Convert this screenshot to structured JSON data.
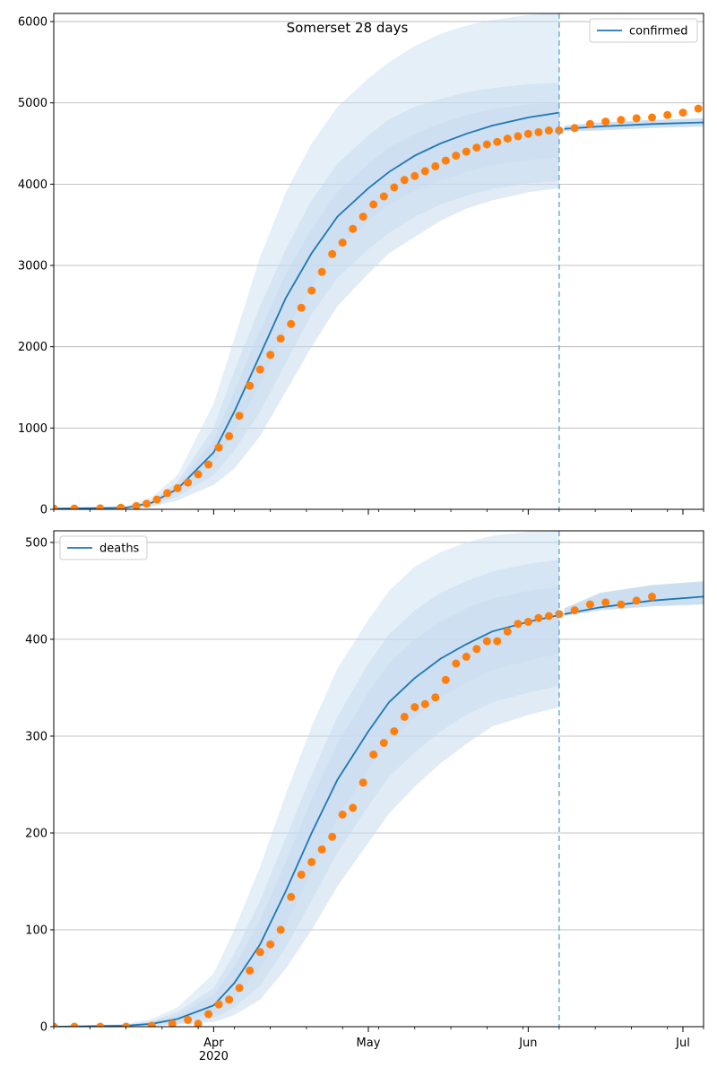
{
  "colors": {
    "line": "#1f77b4",
    "points": "#ff7f0e",
    "band": "#c6dbef",
    "grid": "#b0b0b0",
    "forecast_line": "#6baed6"
  },
  "x_ticks": {
    "major": [
      {
        "date": "2020-04-01",
        "label": "Apr",
        "sub": "2020"
      },
      {
        "date": "2020-05-01",
        "label": "May",
        "sub": ""
      },
      {
        "date": "2020-06-01",
        "label": "Jun",
        "sub": ""
      },
      {
        "date": "2020-07-01",
        "label": "Jul",
        "sub": ""
      }
    ]
  },
  "chart_data": [
    {
      "type": "line",
      "title": "Somerset 28 days",
      "xlabel": "",
      "ylabel": "",
      "xlim": [
        "2020-03-01",
        "2020-07-05"
      ],
      "ylim": [
        0,
        6100
      ],
      "yticks": [
        0,
        1000,
        2000,
        3000,
        4000,
        5000,
        6000
      ],
      "ytick_labels": [
        "0",
        "1000",
        "2000",
        "3000",
        "4000",
        "5000",
        "6000"
      ],
      "grid": true,
      "legend": {
        "position": "top-right",
        "entries": [
          "confirmed"
        ]
      },
      "forecast_start": "2020-06-07",
      "series": [
        {
          "name": "confirmed",
          "kind": "line",
          "x": [
            "2020-03-01",
            "2020-03-15",
            "2020-03-20",
            "2020-03-25",
            "2020-04-01",
            "2020-04-05",
            "2020-04-10",
            "2020-04-15",
            "2020-04-20",
            "2020-04-25",
            "2020-05-01",
            "2020-05-05",
            "2020-05-10",
            "2020-05-15",
            "2020-05-20",
            "2020-05-25",
            "2020-06-01",
            "2020-06-07",
            "2020-06-08",
            "2020-06-15",
            "2020-06-25",
            "2020-07-05"
          ],
          "y": [
            10,
            20,
            80,
            250,
            700,
            1200,
            1900,
            2600,
            3150,
            3600,
            3950,
            4150,
            4350,
            4500,
            4620,
            4720,
            4820,
            4880,
            4680,
            4710,
            4740,
            4760
          ],
          "band_upper": [
            [
              12,
              40,
              150,
              420,
              1300,
              2100,
              3100,
              3900,
              4500,
              4950,
              5300,
              5500,
              5700,
              5850,
              5950,
              6020,
              6080,
              6110
            ],
            [
              11,
              30,
              110,
              340,
              1000,
              1700,
              2500,
              3200,
              3800,
              4250,
              4600,
              4800,
              4950,
              5050,
              5130,
              5180,
              5230,
              5250
            ],
            [
              11,
              25,
              95,
              300,
              850,
              1450,
              2200,
              2900,
              3450,
              3900,
              4250,
              4450,
              4620,
              4750,
              4850,
              4920,
              4980,
              5000
            ]
          ],
          "band_lower": [
            [
              9,
              15,
              60,
              200,
              560,
              960,
              1550,
              2200,
              2750,
              3200,
              3550,
              3750,
              3920,
              4050,
              4150,
              4230,
              4300,
              4330
            ],
            [
              8,
              10,
              45,
              160,
              420,
              720,
              1200,
              1800,
              2400,
              2850,
              3200,
              3400,
              3600,
              3750,
              3860,
              3940,
              4010,
              4040
            ],
            [
              7,
              6,
              30,
              110,
              300,
              500,
              900,
              1450,
              2000,
              2500,
              2900,
              3150,
              3350,
              3550,
              3700,
              3800,
              3900,
              3950
            ]
          ],
          "band_tail_upper": [
            4720,
            4760,
            4790,
            4810
          ],
          "band_tail_lower": [
            4650,
            4660,
            4690,
            4710
          ]
        },
        {
          "name": "confirmed_observed",
          "kind": "points",
          "x": [
            "2020-03-01",
            "2020-03-05",
            "2020-03-10",
            "2020-03-14",
            "2020-03-17",
            "2020-03-19",
            "2020-03-21",
            "2020-03-23",
            "2020-03-25",
            "2020-03-27",
            "2020-03-29",
            "2020-03-31",
            "2020-04-02",
            "2020-04-04",
            "2020-04-06",
            "2020-04-08",
            "2020-04-10",
            "2020-04-12",
            "2020-04-14",
            "2020-04-16",
            "2020-04-18",
            "2020-04-20",
            "2020-04-22",
            "2020-04-24",
            "2020-04-26",
            "2020-04-28",
            "2020-04-30",
            "2020-05-02",
            "2020-05-04",
            "2020-05-06",
            "2020-05-08",
            "2020-05-10",
            "2020-05-12",
            "2020-05-14",
            "2020-05-16",
            "2020-05-18",
            "2020-05-20",
            "2020-05-22",
            "2020-05-24",
            "2020-05-26",
            "2020-05-28",
            "2020-05-30",
            "2020-06-01",
            "2020-06-03",
            "2020-06-05",
            "2020-06-07",
            "2020-06-10",
            "2020-06-13",
            "2020-06-16",
            "2020-06-19",
            "2020-06-22",
            "2020-06-25",
            "2020-06-28",
            "2020-07-01",
            "2020-07-04"
          ],
          "y": [
            10,
            10,
            12,
            20,
            40,
            70,
            120,
            200,
            260,
            330,
            430,
            550,
            760,
            900,
            1150,
            1520,
            1720,
            1900,
            2100,
            2280,
            2480,
            2690,
            2920,
            3140,
            3280,
            3450,
            3600,
            3750,
            3850,
            3960,
            4050,
            4100,
            4160,
            4220,
            4290,
            4350,
            4400,
            4450,
            4490,
            4520,
            4560,
            4590,
            4620,
            4640,
            4660,
            4660,
            4690,
            4740,
            4770,
            4790,
            4810,
            4820,
            4850,
            4880,
            4930
          ]
        }
      ]
    },
    {
      "type": "line",
      "title": "",
      "xlabel": "",
      "ylabel": "",
      "xlim": [
        "2020-03-01",
        "2020-07-05"
      ],
      "ylim": [
        0,
        512
      ],
      "yticks": [
        0,
        100,
        200,
        300,
        400,
        500
      ],
      "ytick_labels": [
        "0",
        "100",
        "200",
        "300",
        "400",
        "500"
      ],
      "grid": true,
      "legend": {
        "position": "top-left",
        "entries": [
          "deaths"
        ]
      },
      "forecast_start": "2020-06-07",
      "series": [
        {
          "name": "deaths",
          "kind": "line",
          "x": [
            "2020-03-01",
            "2020-03-15",
            "2020-03-20",
            "2020-03-25",
            "2020-04-01",
            "2020-04-05",
            "2020-04-10",
            "2020-04-15",
            "2020-04-20",
            "2020-04-25",
            "2020-05-01",
            "2020-05-05",
            "2020-05-10",
            "2020-05-15",
            "2020-05-20",
            "2020-05-25",
            "2020-06-01",
            "2020-06-07",
            "2020-06-08",
            "2020-06-15",
            "2020-06-25",
            "2020-07-05"
          ],
          "y": [
            0,
            1,
            3,
            8,
            22,
            45,
            85,
            140,
            200,
            255,
            305,
            335,
            360,
            380,
            395,
            408,
            418,
            425,
            426,
            433,
            440,
            444
          ],
          "band_upper": [
            [
              0,
              3,
              8,
              20,
              55,
              100,
              165,
              240,
              310,
              370,
              420,
              450,
              475,
              490,
              500,
              507,
              511,
              512
            ],
            [
              0,
              2,
              6,
              15,
              40,
              75,
              130,
              195,
              260,
              320,
              375,
              405,
              430,
              448,
              460,
              470,
              478,
              482
            ],
            [
              0,
              2,
              5,
              12,
              33,
              62,
              110,
              170,
              235,
              292,
              345,
              375,
              400,
              418,
              432,
              442,
              450,
              454
            ]
          ],
          "band_lower": [
            [
              0,
              1,
              2,
              5,
              14,
              30,
              60,
              105,
              160,
              215,
              265,
              295,
              320,
              340,
              355,
              368,
              378,
              385
            ],
            [
              0,
              0,
              1,
              3,
              9,
              20,
              42,
              82,
              130,
              180,
              228,
              258,
              283,
              305,
              322,
              335,
              345,
              352
            ],
            [
              0,
              0,
              1,
              2,
              5,
              12,
              28,
              60,
              100,
              145,
              190,
              220,
              248,
              272,
              292,
              310,
              322,
              330
            ]
          ],
          "band_tail_upper": [
            432,
            448,
            456,
            460
          ],
          "band_tail_lower": [
            424,
            430,
            434,
            436
          ]
        },
        {
          "name": "deaths_observed",
          "kind": "points",
          "x": [
            "2020-03-01",
            "2020-03-05",
            "2020-03-10",
            "2020-03-15",
            "2020-03-20",
            "2020-03-24",
            "2020-03-27",
            "2020-03-29",
            "2020-03-31",
            "2020-04-02",
            "2020-04-04",
            "2020-04-06",
            "2020-04-08",
            "2020-04-10",
            "2020-04-12",
            "2020-04-14",
            "2020-04-16",
            "2020-04-18",
            "2020-04-20",
            "2020-04-22",
            "2020-04-24",
            "2020-04-26",
            "2020-04-28",
            "2020-04-30",
            "2020-05-02",
            "2020-05-04",
            "2020-05-06",
            "2020-05-08",
            "2020-05-10",
            "2020-05-12",
            "2020-05-14",
            "2020-05-16",
            "2020-05-18",
            "2020-05-20",
            "2020-05-22",
            "2020-05-24",
            "2020-05-26",
            "2020-05-28",
            "2020-05-30",
            "2020-06-01",
            "2020-06-03",
            "2020-06-05",
            "2020-06-07",
            "2020-06-10",
            "2020-06-13",
            "2020-06-16",
            "2020-06-19",
            "2020-06-22",
            "2020-06-25"
          ],
          "y": [
            0,
            0,
            0,
            0,
            1,
            3,
            7,
            3,
            13,
            23,
            28,
            40,
            58,
            77,
            85,
            100,
            134,
            157,
            170,
            183,
            196,
            219,
            226,
            252,
            281,
            293,
            305,
            320,
            330,
            333,
            340,
            358,
            375,
            382,
            390,
            398,
            398,
            408,
            416,
            418,
            422,
            424,
            426,
            430,
            436,
            438,
            436,
            440,
            444
          ]
        }
      ]
    }
  ]
}
